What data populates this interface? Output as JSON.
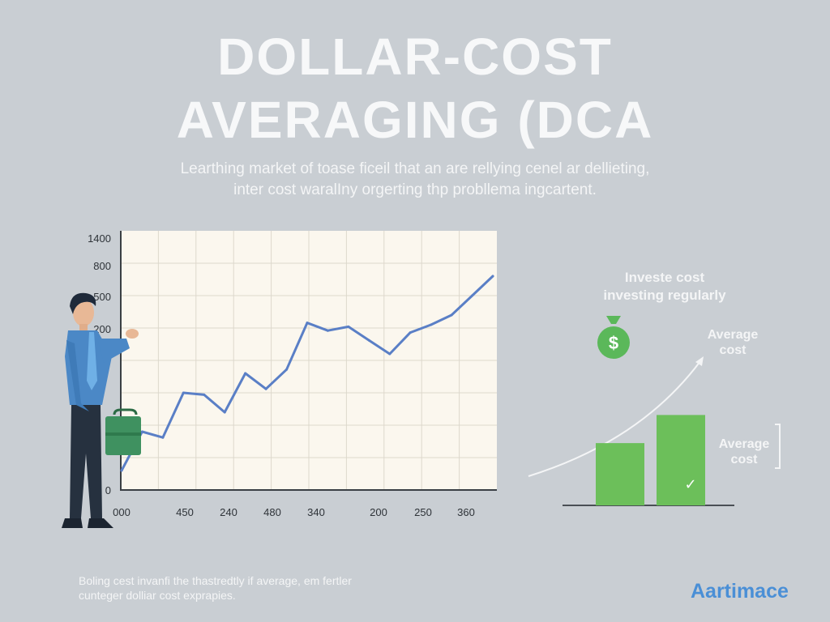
{
  "header": {
    "title_line1": "DOLLAR-COST",
    "title_line2": "AVERAGING (DCA",
    "subtitle_line1": "Learthing market of toase ficeil that an are rellying cenel ar dellieting,",
    "subtitle_line2": "inter cost waralIny orgerting thp probllema ingcartent."
  },
  "chart_data": {
    "type": "line",
    "y_tick_labels": [
      "0",
      "",
      "",
      "200",
      "500",
      "800",
      "1400"
    ],
    "x_tick_labels": [
      "000",
      "450",
      "240",
      "480",
      "340",
      "200",
      "250",
      "360"
    ],
    "x": [
      1,
      2,
      3,
      4,
      5,
      6,
      7,
      8,
      9,
      10,
      11,
      12,
      13,
      14,
      15,
      16,
      17,
      18,
      19
    ],
    "values": [
      0.1,
      0.3,
      0.27,
      0.5,
      0.49,
      0.4,
      0.6,
      0.52,
      0.62,
      0.86,
      0.82,
      0.84,
      0.77,
      0.7,
      0.81,
      0.85,
      0.9,
      1.0,
      1.1
    ],
    "grid": true
  },
  "side_panel": {
    "heading_line1": "Investe cost",
    "heading_line2": "investing regularly",
    "arrow_label_line1": "Average",
    "arrow_label_line2": "cost",
    "bar_label_line1": "Average",
    "bar_label_line2": "cost",
    "money_bag_symbol": "$",
    "check_symbol": "✓",
    "bar_values": [
      0.62,
      0.9
    ],
    "bar_color": "#6cbf5a",
    "money_bag_color": "#5bb85a"
  },
  "footer": {
    "line1": "Boling cest invanfi the thastredtly if average, em fertler",
    "line2": "cunteger dolliar cost exprapies."
  },
  "brand": {
    "name": "Aartimace",
    "color": "#4a8fd6"
  },
  "icons": {
    "person": "businessman-illustration-icon",
    "briefcase": "briefcase-icon",
    "money_bag": "money-bag-icon",
    "arrow": "trend-arrow-icon",
    "check": "checkmark-icon",
    "bracket": "bracket-icon"
  },
  "colors": {
    "line": "#5a7fc6",
    "chart_bg": "#fbf7ee",
    "grid": "#ddd8cc",
    "axis": "#3a3f44"
  }
}
